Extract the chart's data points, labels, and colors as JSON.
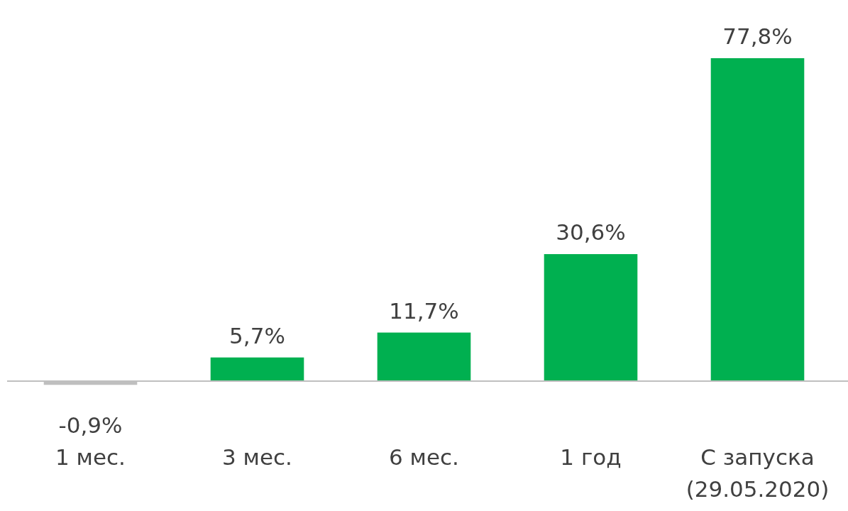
{
  "chart_data": {
    "type": "bar",
    "categories": [
      "1 мес.",
      "3 мес.",
      "6 мес.",
      "1 год",
      "С запуска (29.05.2020)"
    ],
    "values": [
      -0.9,
      5.7,
      11.7,
      30.6,
      77.8
    ],
    "colors": [
      "#bfbfbf",
      "#00b050",
      "#00b050",
      "#00b050",
      "#00b050"
    ],
    "value_labels": [
      "-0,9%",
      "5,7%",
      "11,7%",
      "30,6%",
      "77,8%"
    ]
  }
}
